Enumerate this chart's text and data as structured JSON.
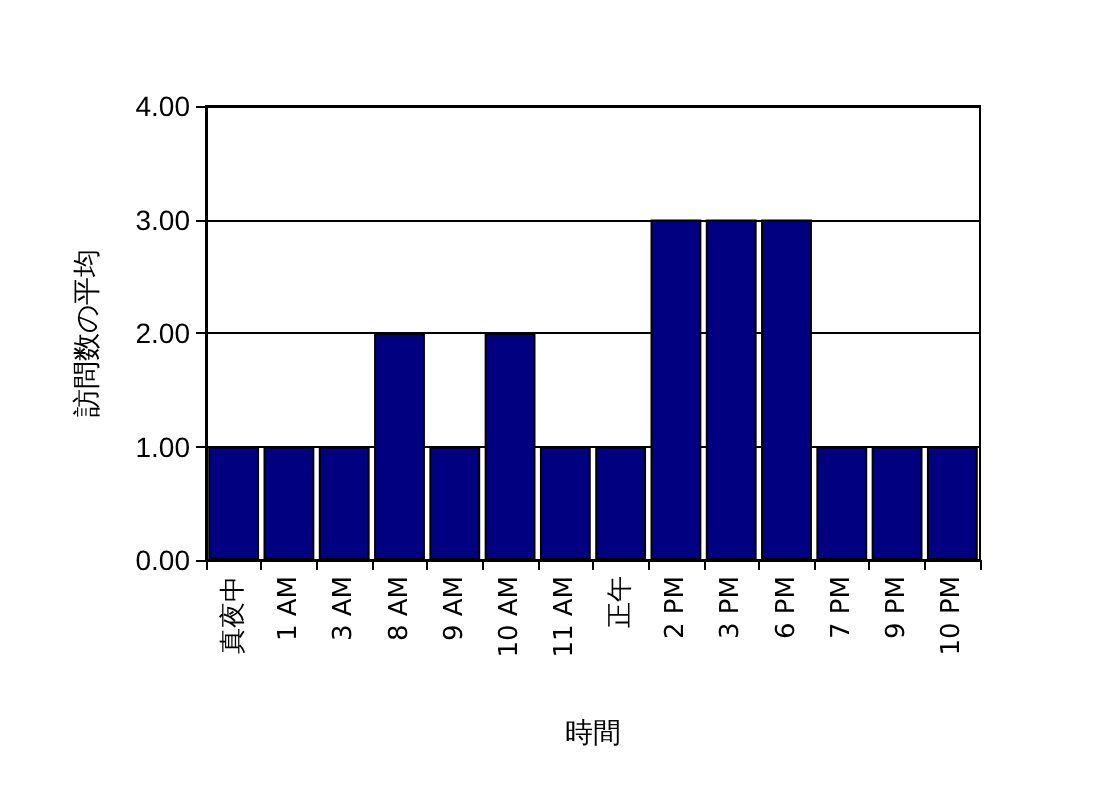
{
  "chart_data": {
    "type": "bar",
    "xlabel": "時間",
    "ylabel": "訪問数の平均",
    "categories": [
      "真夜中",
      "1 AM",
      "3 AM",
      "8 AM",
      "9 AM",
      "10 AM",
      "11 AM",
      "正午",
      "2 PM",
      "3 PM",
      "6 PM",
      "7 PM",
      "9 PM",
      "10 PM"
    ],
    "values": [
      1,
      1,
      1,
      2,
      1,
      2,
      1,
      1,
      3,
      3,
      3,
      1,
      1,
      1
    ],
    "color": "#000080",
    "ylim": [
      0,
      4
    ],
    "yticks": [
      {
        "value": 0,
        "label": "0.00"
      },
      {
        "value": 1,
        "label": "1.00"
      },
      {
        "value": 2,
        "label": "2.00"
      },
      {
        "value": 3,
        "label": "3.00"
      },
      {
        "value": 4,
        "label": "4.00"
      }
    ],
    "grid": "y"
  }
}
